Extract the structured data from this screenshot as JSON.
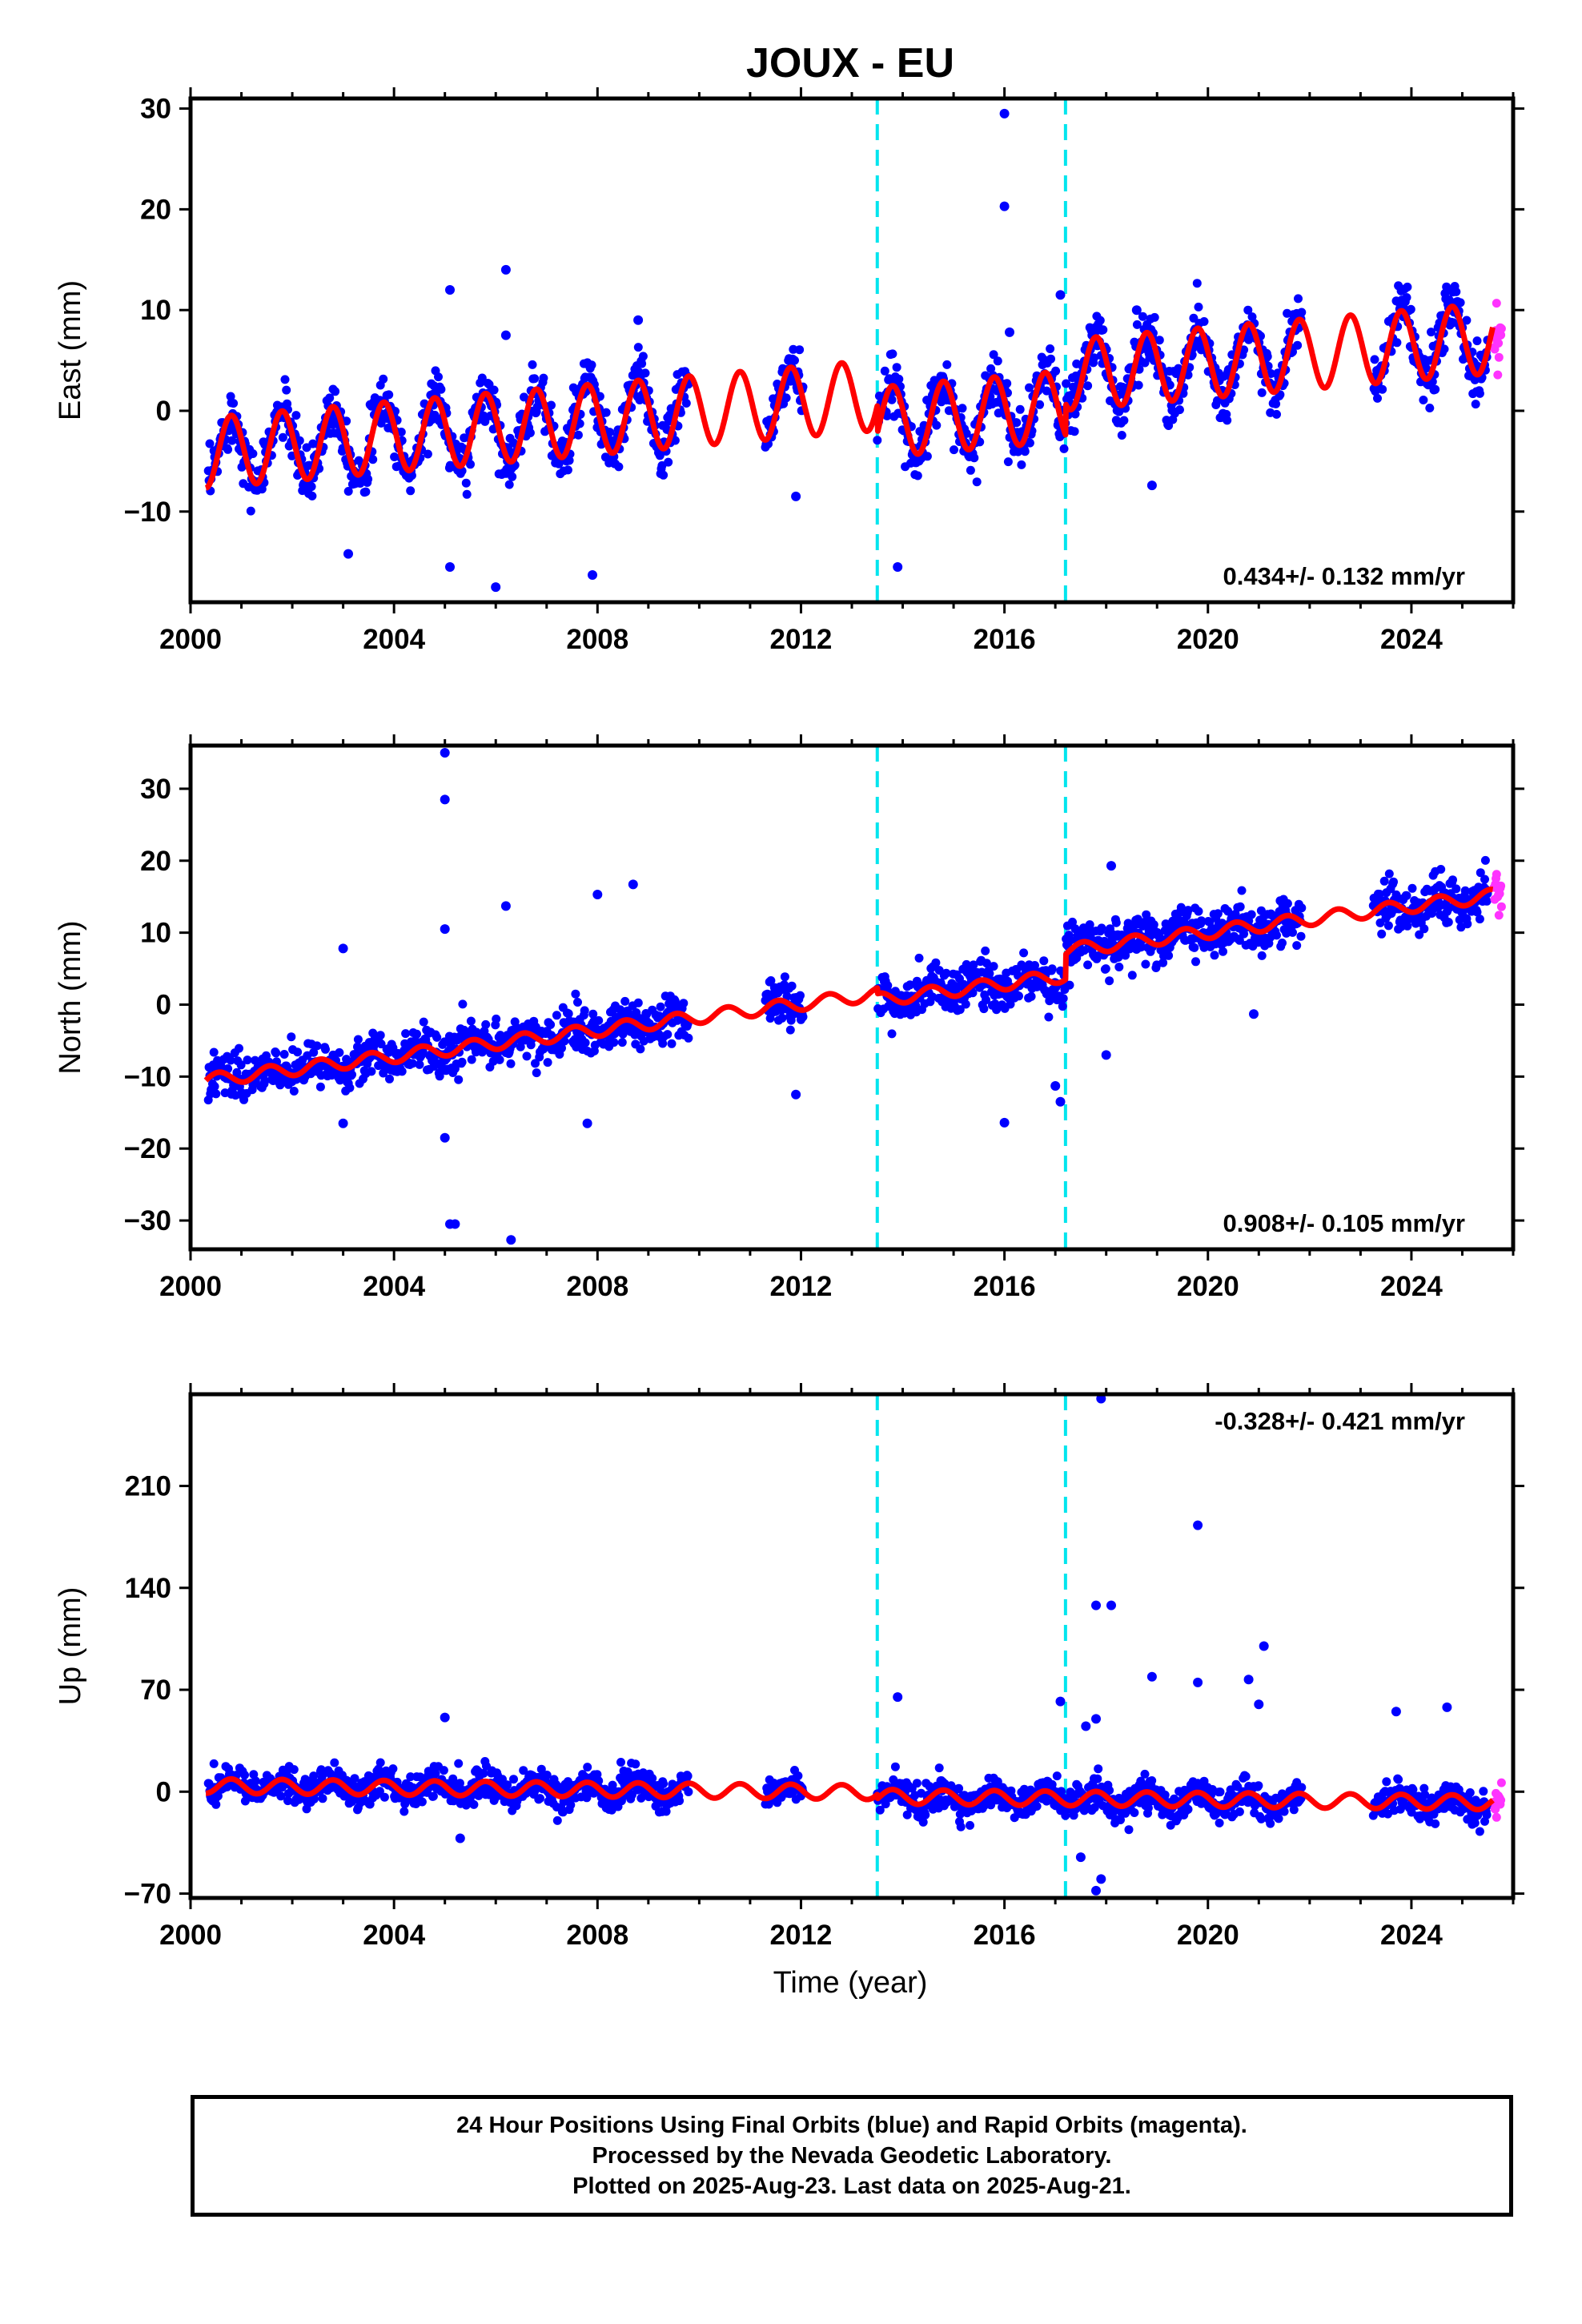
{
  "title": "JOUX - EU",
  "colors": {
    "final_points": "#0000ff",
    "rapid_points": "#ff33ff",
    "model": "#ff0000",
    "offsets": "#00e5ee",
    "axis": "#000000"
  },
  "chart_data": [
    {
      "type": "scatter",
      "ylabel": "East (mm)",
      "rate_label": "0.434+/- 0.132 mm/yr",
      "rate_position": "bottom-right",
      "xlim": [
        2000,
        2026
      ],
      "ylim": [
        -19,
        31
      ],
      "x_ticks": [
        2000,
        2004,
        2008,
        2012,
        2016,
        2020,
        2024
      ],
      "y_ticks": [
        -10,
        0,
        10,
        20,
        30
      ],
      "offset_lines": [
        2013.5,
        2017.2
      ],
      "data_spans": [
        [
          2000.35,
          2009.8
        ],
        [
          2011.3,
          2012.05
        ],
        [
          2013.5,
          2021.85
        ],
        [
          2023.25,
          2025.5
        ]
      ],
      "rapid_span": [
        2025.5,
        2025.65
      ],
      "model": {
        "intercept": -4.3,
        "rate": 0.434,
        "rate_ref_year": 2000,
        "amplitude": 3.5,
        "phase_year": 0.55,
        "offsets": [
          [
            2013.5,
            -2.7
          ],
          [
            2017.2,
            3.1
          ]
        ]
      },
      "scatter_sd": 1.4,
      "outliers": [
        [
          2016.0,
          29.5
        ],
        [
          2016.0,
          20.3
        ],
        [
          2006.2,
          14.0
        ],
        [
          2005.1,
          12.0
        ],
        [
          2017.1,
          11.5
        ],
        [
          2008.8,
          9.0
        ],
        [
          2006.2,
          7.5
        ],
        [
          2018.6,
          10.0
        ],
        [
          2003.1,
          -14.2
        ],
        [
          2005.1,
          -15.5
        ],
        [
          2006.0,
          -17.5
        ],
        [
          2007.9,
          -16.3
        ],
        [
          2013.9,
          -15.5
        ],
        [
          2011.9,
          -8.5
        ],
        [
          2018.9,
          -7.4
        ],
        [
          2016.1,
          7.8
        ]
      ]
    },
    {
      "type": "scatter",
      "ylabel": "North (mm)",
      "rate_label": "0.908+/- 0.105 mm/yr",
      "rate_position": "bottom-right",
      "xlim": [
        2000,
        2026
      ],
      "ylim": [
        -34,
        36
      ],
      "x_ticks": [
        2000,
        2004,
        2008,
        2012,
        2016,
        2020,
        2024
      ],
      "y_ticks": [
        -30,
        -20,
        -10,
        0,
        10,
        20,
        30
      ],
      "offset_lines": [
        2013.5,
        2017.2
      ],
      "data_spans": [
        [
          2000.35,
          2009.8
        ],
        [
          2011.3,
          2012.05
        ],
        [
          2013.5,
          2021.85
        ],
        [
          2023.25,
          2025.5
        ]
      ],
      "rapid_span": [
        2025.5,
        2025.65
      ],
      "model": {
        "intercept": -10.8,
        "rate": 0.908,
        "rate_ref_year": 2000,
        "amplitude": 0.9,
        "phase_year": 0.3,
        "offsets": [
          [
            2013.5,
            -0.8
          ],
          [
            2017.2,
            3.5
          ]
        ]
      },
      "scatter_sd": 1.6,
      "outliers": [
        [
          2005.0,
          35.0
        ],
        [
          2005.0,
          28.5
        ],
        [
          2005.0,
          10.5
        ],
        [
          2003.0,
          7.8
        ],
        [
          2006.2,
          13.7
        ],
        [
          2008.0,
          15.3
        ],
        [
          2008.7,
          16.7
        ],
        [
          2018.1,
          19.3
        ],
        [
          2005.1,
          -30.5
        ],
        [
          2005.2,
          -30.5
        ],
        [
          2006.3,
          -32.7
        ],
        [
          2005.0,
          -18.5
        ],
        [
          2003.0,
          -16.5
        ],
        [
          2007.8,
          -16.5
        ],
        [
          2011.9,
          -12.5
        ],
        [
          2016.0,
          -16.4
        ],
        [
          2017.1,
          -13.5
        ],
        [
          2017.0,
          -11.3
        ],
        [
          2018.0,
          -7.0
        ],
        [
          2020.9,
          -1.3
        ]
      ]
    },
    {
      "type": "scatter",
      "ylabel": "Up (mm)",
      "xlabel": "Time (year)",
      "rate_label": "-0.328+/- 0.421 mm/yr",
      "rate_position": "top-right",
      "xlim": [
        2000,
        2026
      ],
      "ylim": [
        -73,
        273
      ],
      "x_ticks": [
        2000,
        2004,
        2008,
        2012,
        2016,
        2020,
        2024
      ],
      "y_ticks": [
        -70,
        0,
        70,
        140,
        210
      ],
      "offset_lines": [
        2013.5,
        2017.2
      ],
      "data_spans": [
        [
          2000.35,
          2009.8
        ],
        [
          2011.3,
          2012.05
        ],
        [
          2013.5,
          2021.85
        ],
        [
          2023.25,
          2025.5
        ]
      ],
      "rapid_span": [
        2025.5,
        2025.65
      ],
      "model": {
        "intercept": 4.0,
        "rate": -0.328,
        "rate_ref_year": 2000,
        "amplitude": 5.0,
        "phase_year": 0.55,
        "offsets": [
          [
            2013.5,
            -3.0
          ],
          [
            2017.2,
            0.0
          ]
        ]
      },
      "scatter_sd": 5.5,
      "outliers": [
        [
          2017.9,
          270
        ],
        [
          2019.8,
          183
        ],
        [
          2017.8,
          128
        ],
        [
          2018.1,
          128
        ],
        [
          2021.1,
          100
        ],
        [
          2019.8,
          75
        ],
        [
          2018.9,
          79
        ],
        [
          2020.8,
          77
        ],
        [
          2021.0,
          60
        ],
        [
          2017.1,
          62
        ],
        [
          2013.9,
          65
        ],
        [
          2005.0,
          51
        ],
        [
          2024.7,
          58
        ],
        [
          2023.7,
          55
        ],
        [
          2017.8,
          50
        ],
        [
          2017.6,
          45
        ],
        [
          2017.9,
          -60
        ],
        [
          2017.8,
          -68
        ],
        [
          2005.3,
          -32
        ],
        [
          2017.5,
          -45
        ]
      ]
    }
  ],
  "caption": {
    "line1": "24 Hour Positions Using Final Orbits (blue) and Rapid Orbits (magenta).",
    "line2": "Processed by the Nevada Geodetic Laboratory.",
    "line3": "Plotted on 2025-Aug-23. Last data on 2025-Aug-21."
  }
}
